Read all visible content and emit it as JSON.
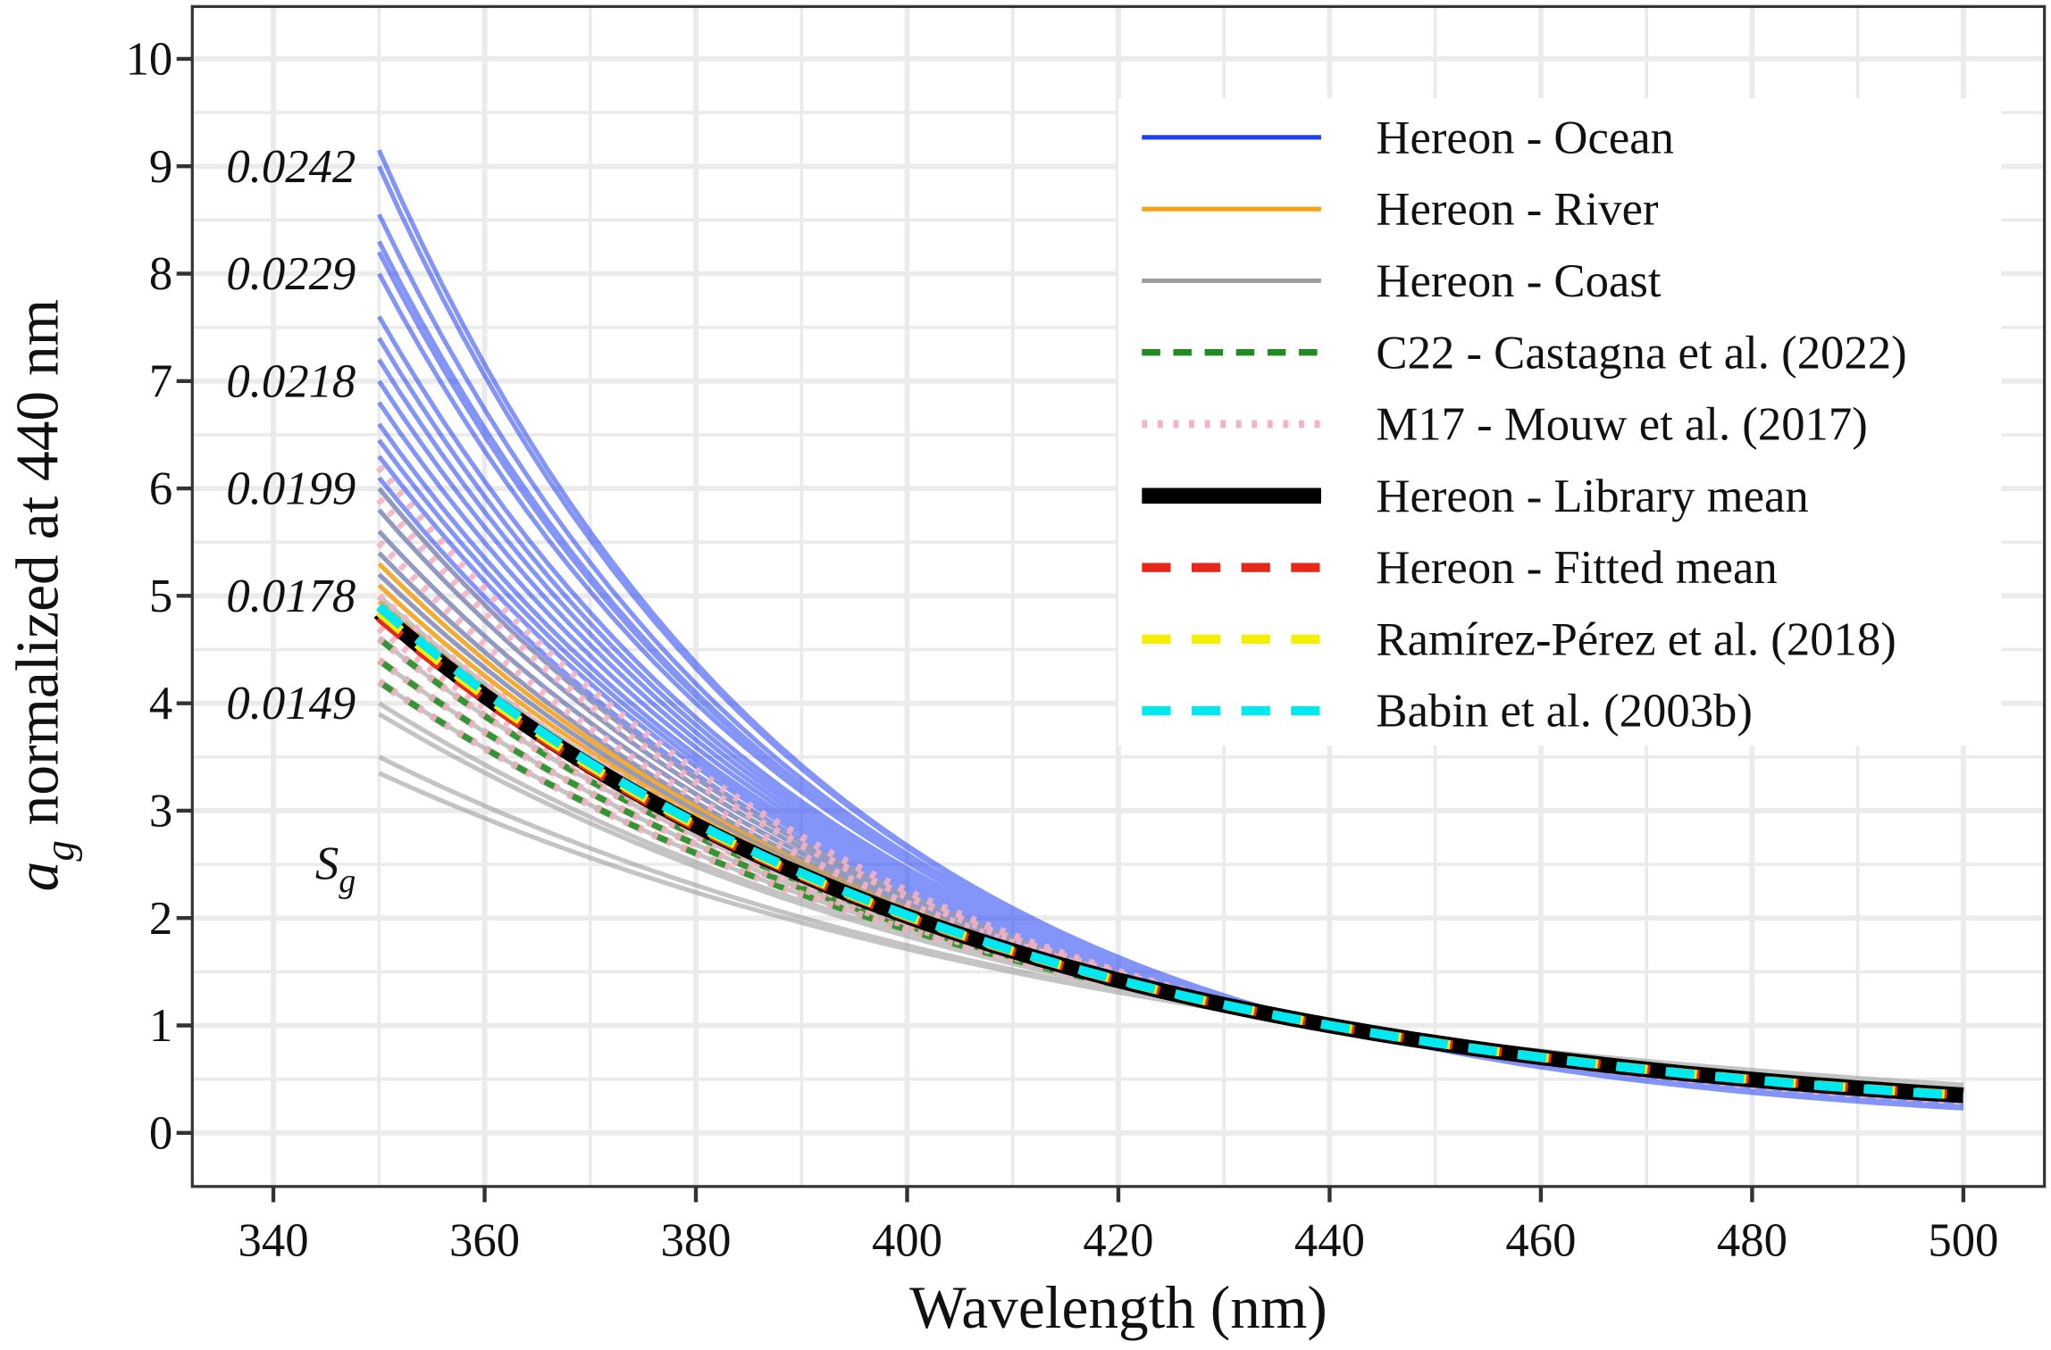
{
  "chart_data": {
    "type": "line",
    "xlabel": "Wavelength (nm)",
    "ylabel": {
      "symbol": "a",
      "subscript": "g",
      "rest": " normalized at 440 nm"
    },
    "xlim": [
      333,
      509
    ],
    "ylim": [
      -0.5,
      10.5
    ],
    "xticks": [
      "340",
      "360",
      "380",
      "400",
      "420",
      "440",
      "460",
      "480",
      "500"
    ],
    "yticks": [
      "0",
      "1",
      "2",
      "3",
      "4",
      "5",
      "6",
      "7",
      "8",
      "9",
      "10"
    ],
    "grid": true,
    "legend_position": "top-right",
    "normalization_wavelength": 440,
    "x_range": [
      350,
      500
    ],
    "sg_annotation": {
      "title_symbol": "S",
      "title_subscript": "g",
      "labels": [
        {
          "text": "0.0242",
          "y": 9.0
        },
        {
          "text": "0.0229",
          "y": 8.0
        },
        {
          "text": "0.0218",
          "y": 7.0
        },
        {
          "text": "0.0199",
          "y": 6.0
        },
        {
          "text": "0.0178",
          "y": 5.0
        },
        {
          "text": "0.0149",
          "y": 4.0
        }
      ]
    },
    "series": [
      {
        "name": "Hereon - Ocean",
        "color": "#1f3ff5",
        "style": "solid",
        "opacity": 0.55,
        "curves_y_at_350": [
          9.15,
          9.0,
          8.55,
          8.3,
          8.2,
          8.0,
          7.6,
          7.4,
          7.2,
          7.0,
          6.8,
          6.6,
          6.45,
          6.3,
          6.1,
          6.0,
          5.8,
          5.6,
          5.4,
          5.2
        ]
      },
      {
        "name": "Hereon - River",
        "color": "#f5a31a",
        "style": "solid",
        "opacity": 0.9,
        "curves_y_at_350": [
          5.3,
          5.1,
          4.95
        ]
      },
      {
        "name": "Hereon - Coast",
        "color": "#9e9e9e",
        "style": "solid",
        "opacity": 0.6,
        "curves_y_at_350": [
          6.0,
          5.8,
          5.6,
          5.4,
          5.2,
          5.0,
          4.8,
          4.6,
          4.4,
          4.2,
          4.0,
          3.9,
          3.5,
          3.35
        ]
      },
      {
        "name": "C22 - Castagna et al. (2022)",
        "color": "#1e8c1e",
        "style": "dashed",
        "opacity": 0.85,
        "curves_y_at_350": [
          4.8,
          4.6,
          4.4,
          4.2
        ]
      },
      {
        "name": "M17 - Mouw et al. (2017)",
        "color": "#f4b3c2",
        "style": "dotted",
        "opacity": 0.9,
        "curves_y_at_350": [
          6.2,
          5.9,
          5.5,
          5.0,
          4.7,
          4.4,
          4.2,
          4.6
        ]
      },
      {
        "name": "Hereon - Library mean",
        "color": "#000000",
        "style": "solid-thick",
        "opacity": 1,
        "curves_y_at_350": [
          4.85
        ]
      },
      {
        "name": "Hereon - Fitted mean",
        "color": "#e8271a",
        "style": "dashed",
        "opacity": 1,
        "curves_y_at_350": [
          4.8
        ]
      },
      {
        "name": "Ramírez-Pérez et al. (2018)",
        "color": "#f5f000",
        "style": "dashed",
        "opacity": 1,
        "curves_y_at_350": [
          4.85
        ]
      },
      {
        "name": "Babin et al. (2003b)",
        "color": "#00e8f0",
        "style": "dashed",
        "opacity": 1,
        "curves_y_at_350": [
          4.9
        ]
      }
    ]
  }
}
